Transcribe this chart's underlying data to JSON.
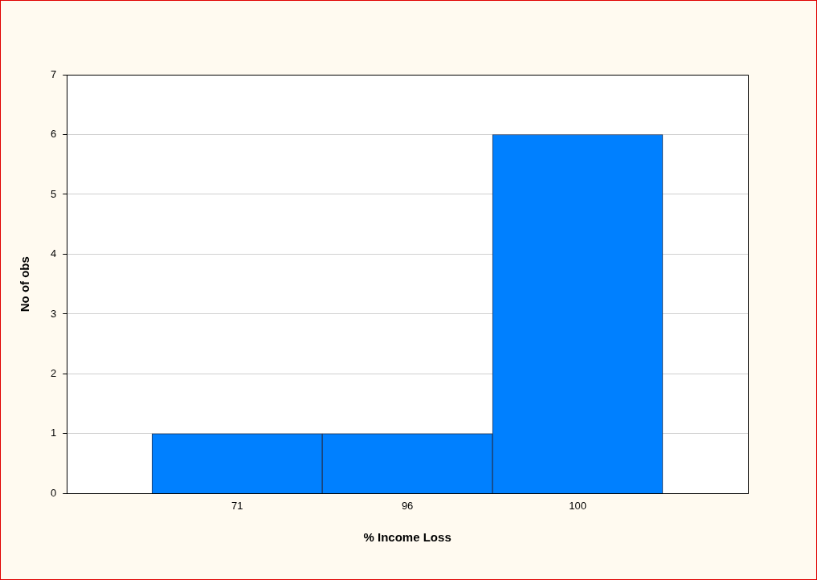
{
  "chart_data": {
    "type": "bar",
    "xlabel": "% Income Loss",
    "ylabel": "No of obs",
    "categories": [
      "71",
      "96",
      "100"
    ],
    "values": [
      1,
      1,
      6
    ],
    "color": "#0080ff",
    "ylim": [
      0,
      7
    ],
    "yticks": [
      0,
      1,
      2,
      3,
      4,
      5,
      6,
      7
    ],
    "grid": "y"
  }
}
